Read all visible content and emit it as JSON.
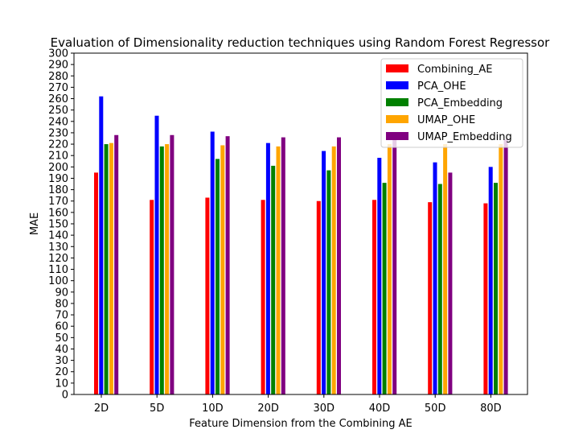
{
  "chart_data": {
    "type": "bar",
    "title": "Evaluation of Dimensionality reduction techniques using Random Forest Regressor",
    "xlabel": "Feature Dimension from the Combining AE",
    "ylabel": "MAE",
    "ylim": [
      0,
      300
    ],
    "ytick_step": 10,
    "grid": false,
    "legend_position": "top-right",
    "categories": [
      "2D",
      "5D",
      "10D",
      "20D",
      "30D",
      "40D",
      "50D",
      "80D"
    ],
    "series": [
      {
        "name": "Combining_AE",
        "color": "#ff0000",
        "values": [
          195,
          171,
          173,
          171,
          170,
          171,
          169,
          168
        ]
      },
      {
        "name": "PCA_OHE",
        "color": "#0000ff",
        "values": [
          262,
          245,
          231,
          221,
          214,
          208,
          204,
          200
        ]
      },
      {
        "name": "PCA_Embedding",
        "color": "#008000",
        "values": [
          220,
          218,
          207,
          201,
          197,
          186,
          185,
          186
        ]
      },
      {
        "name": "UMAP_OHE",
        "color": "#ffa500",
        "values": [
          221,
          220,
          219,
          218,
          218,
          220,
          220,
          220
        ]
      },
      {
        "name": "UMAP_Embedding",
        "color": "#800080",
        "values": [
          228,
          228,
          227,
          226,
          226,
          224,
          195,
          224
        ]
      }
    ]
  }
}
